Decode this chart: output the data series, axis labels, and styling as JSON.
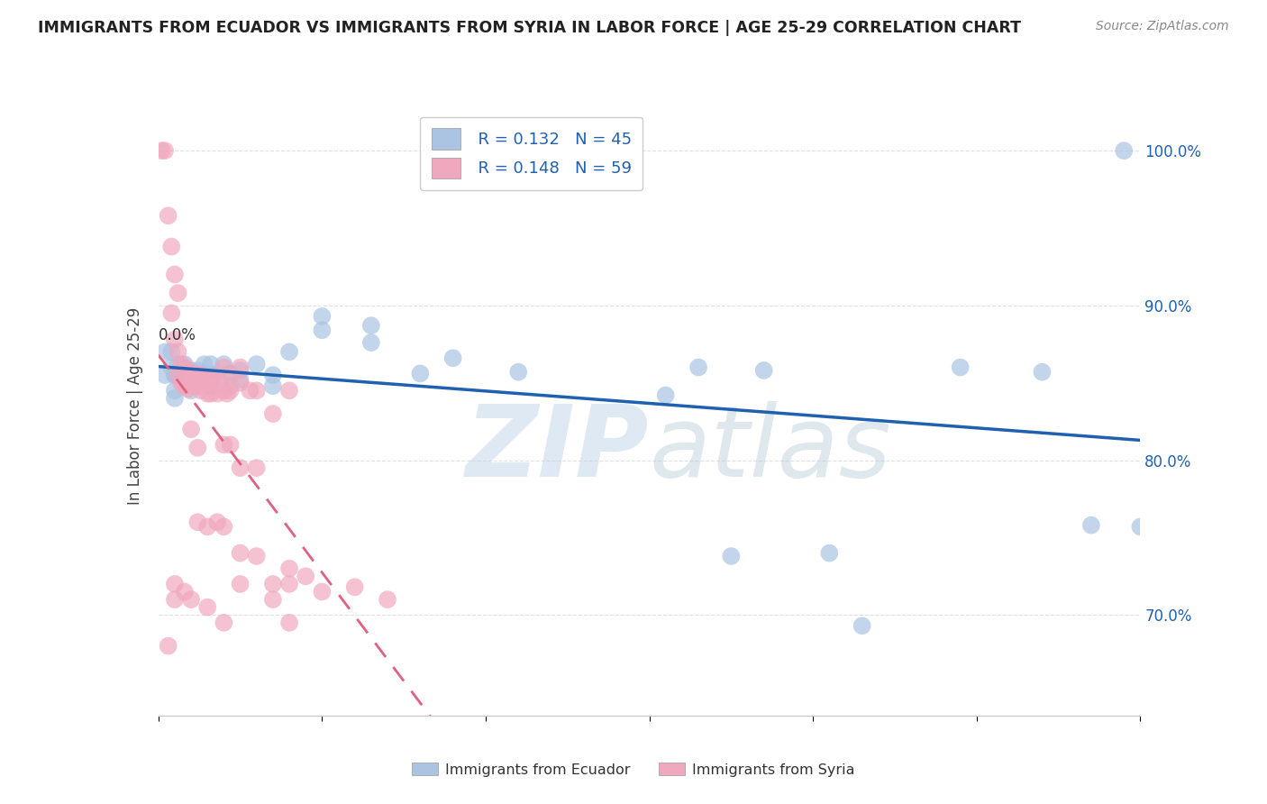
{
  "title": "IMMIGRANTS FROM ECUADOR VS IMMIGRANTS FROM SYRIA IN LABOR FORCE | AGE 25-29 CORRELATION CHART",
  "source": "Source: ZipAtlas.com",
  "ylabel": "In Labor Force | Age 25-29",
  "ytick_vals": [
    0.7,
    0.8,
    0.9,
    1.0
  ],
  "xlim": [
    0.0,
    0.3
  ],
  "ylim": [
    0.635,
    1.035
  ],
  "ecuador_color": "#aac4e2",
  "syria_color": "#f0a8be",
  "ecuador_line_color": "#2060b0",
  "syria_line_color": "#e06080",
  "ecuador_line_slope": 0.18,
  "ecuador_line_intercept": 0.845,
  "syria_line_slope": 0.5,
  "syria_line_intercept": 0.84,
  "ecuador_points": [
    [
      0.002,
      0.87
    ],
    [
      0.002,
      0.855
    ],
    [
      0.004,
      0.86
    ],
    [
      0.004,
      0.87
    ],
    [
      0.005,
      0.855
    ],
    [
      0.005,
      0.845
    ],
    [
      0.005,
      0.84
    ],
    [
      0.005,
      0.855
    ],
    [
      0.006,
      0.862
    ],
    [
      0.006,
      0.855
    ],
    [
      0.008,
      0.862
    ],
    [
      0.008,
      0.855
    ],
    [
      0.01,
      0.858
    ],
    [
      0.01,
      0.85
    ],
    [
      0.01,
      0.845
    ],
    [
      0.012,
      0.858
    ],
    [
      0.012,
      0.85
    ],
    [
      0.014,
      0.862
    ],
    [
      0.014,
      0.856
    ],
    [
      0.016,
      0.862
    ],
    [
      0.016,
      0.855
    ],
    [
      0.016,
      0.848
    ],
    [
      0.018,
      0.856
    ],
    [
      0.02,
      0.862
    ],
    [
      0.022,
      0.856
    ],
    [
      0.022,
      0.848
    ],
    [
      0.025,
      0.858
    ],
    [
      0.025,
      0.852
    ],
    [
      0.03,
      0.862
    ],
    [
      0.035,
      0.855
    ],
    [
      0.035,
      0.848
    ],
    [
      0.04,
      0.87
    ],
    [
      0.05,
      0.893
    ],
    [
      0.05,
      0.884
    ],
    [
      0.065,
      0.887
    ],
    [
      0.065,
      0.876
    ],
    [
      0.08,
      0.856
    ],
    [
      0.09,
      0.866
    ],
    [
      0.11,
      0.857
    ],
    [
      0.155,
      0.842
    ],
    [
      0.165,
      0.86
    ],
    [
      0.175,
      0.738
    ],
    [
      0.185,
      0.858
    ],
    [
      0.205,
      0.74
    ],
    [
      0.215,
      0.693
    ],
    [
      0.245,
      0.86
    ],
    [
      0.27,
      0.857
    ],
    [
      0.285,
      0.758
    ],
    [
      0.295,
      1.0
    ],
    [
      0.3,
      0.757
    ]
  ],
  "syria_points": [
    [
      0.001,
      1.0
    ],
    [
      0.002,
      1.0
    ],
    [
      0.003,
      0.958
    ],
    [
      0.004,
      0.938
    ],
    [
      0.005,
      0.92
    ],
    [
      0.006,
      0.908
    ],
    [
      0.004,
      0.895
    ],
    [
      0.005,
      0.878
    ],
    [
      0.006,
      0.87
    ],
    [
      0.007,
      0.862
    ],
    [
      0.006,
      0.855
    ],
    [
      0.007,
      0.85
    ],
    [
      0.008,
      0.86
    ],
    [
      0.008,
      0.848
    ],
    [
      0.009,
      0.858
    ],
    [
      0.009,
      0.846
    ],
    [
      0.01,
      0.856
    ],
    [
      0.01,
      0.848
    ],
    [
      0.011,
      0.856
    ],
    [
      0.011,
      0.848
    ],
    [
      0.012,
      0.855
    ],
    [
      0.012,
      0.848
    ],
    [
      0.013,
      0.855
    ],
    [
      0.013,
      0.845
    ],
    [
      0.014,
      0.85
    ],
    [
      0.015,
      0.852
    ],
    [
      0.015,
      0.843
    ],
    [
      0.016,
      0.843
    ],
    [
      0.016,
      0.852
    ],
    [
      0.017,
      0.852
    ],
    [
      0.018,
      0.843
    ],
    [
      0.019,
      0.85
    ],
    [
      0.02,
      0.845
    ],
    [
      0.021,
      0.843
    ],
    [
      0.02,
      0.86
    ],
    [
      0.022,
      0.855
    ],
    [
      0.022,
      0.845
    ],
    [
      0.025,
      0.86
    ],
    [
      0.025,
      0.85
    ],
    [
      0.028,
      0.845
    ],
    [
      0.03,
      0.845
    ],
    [
      0.035,
      0.83
    ],
    [
      0.04,
      0.845
    ],
    [
      0.01,
      0.82
    ],
    [
      0.012,
      0.808
    ],
    [
      0.02,
      0.81
    ],
    [
      0.022,
      0.81
    ],
    [
      0.025,
      0.795
    ],
    [
      0.03,
      0.795
    ],
    [
      0.012,
      0.76
    ],
    [
      0.015,
      0.757
    ],
    [
      0.018,
      0.76
    ],
    [
      0.02,
      0.757
    ],
    [
      0.025,
      0.74
    ],
    [
      0.03,
      0.738
    ],
    [
      0.025,
      0.72
    ],
    [
      0.04,
      0.73
    ],
    [
      0.035,
      0.71
    ],
    [
      0.04,
      0.695
    ],
    [
      0.005,
      0.72
    ],
    [
      0.005,
      0.71
    ],
    [
      0.008,
      0.715
    ],
    [
      0.01,
      0.71
    ],
    [
      0.015,
      0.705
    ],
    [
      0.02,
      0.695
    ],
    [
      0.003,
      0.68
    ],
    [
      0.035,
      0.72
    ],
    [
      0.04,
      0.72
    ],
    [
      0.045,
      0.725
    ],
    [
      0.05,
      0.715
    ],
    [
      0.06,
      0.718
    ],
    [
      0.07,
      0.71
    ]
  ],
  "background_color": "#ffffff",
  "grid_color": "#dddddd"
}
